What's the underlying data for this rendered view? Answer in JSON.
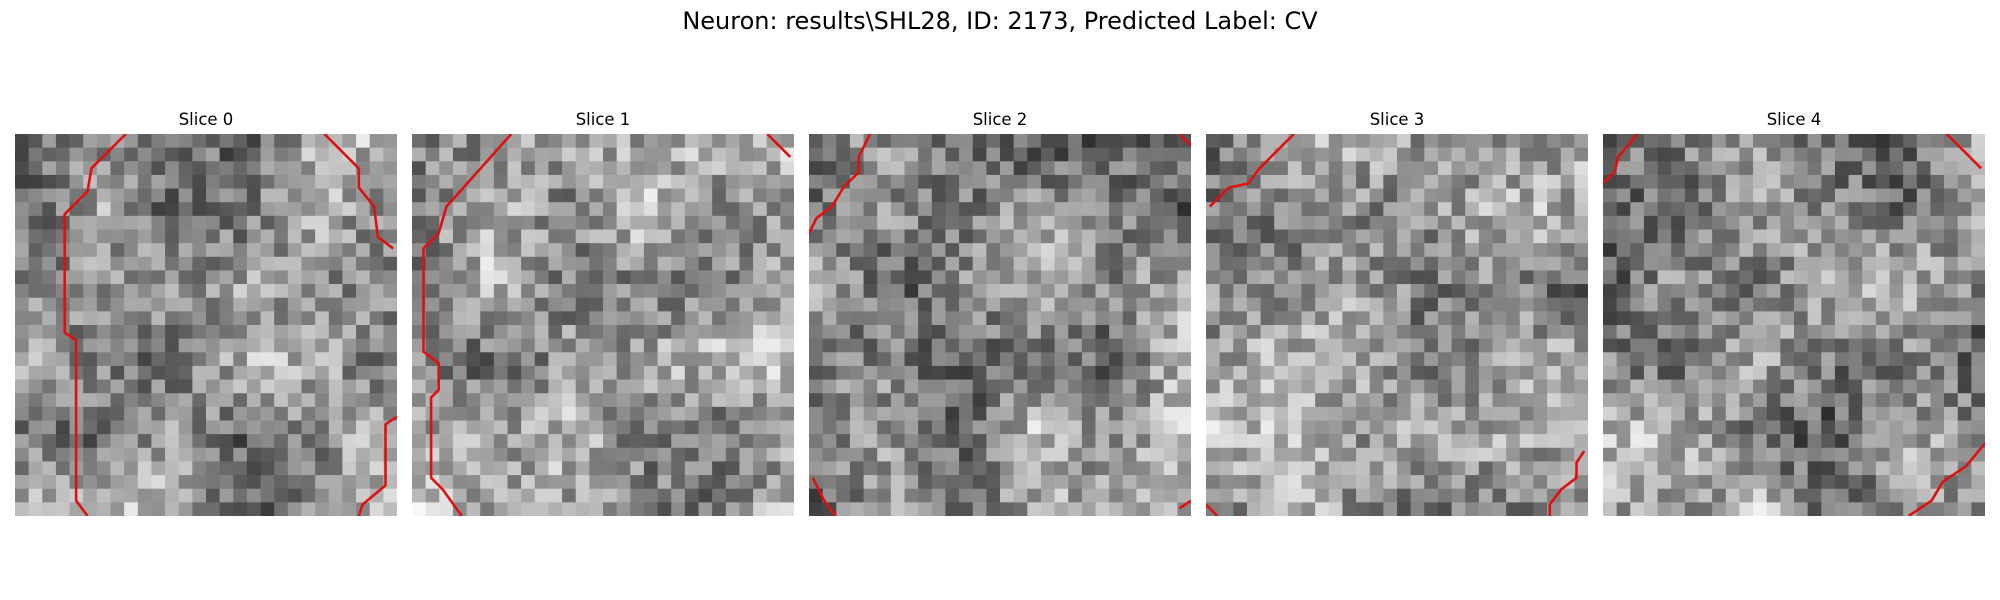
{
  "figure": {
    "title": "Neuron: results\\SHL28, ID: 2173, Predicted Label: CV"
  },
  "colors": {
    "background": "#ffffff",
    "contour": "#e01010",
    "colormap": "grayscale"
  },
  "panels": [
    {
      "title": "Slice 0",
      "seed": 11,
      "brightness": 0.58,
      "contours": [
        [
          [
            0.29,
            0.0
          ],
          [
            0.2,
            0.09
          ],
          [
            0.19,
            0.15
          ],
          [
            0.13,
            0.21
          ],
          [
            0.13,
            0.52
          ],
          [
            0.16,
            0.54
          ],
          [
            0.16,
            0.96
          ],
          [
            0.19,
            1.0
          ]
        ],
        [
          [
            0.81,
            0.0
          ],
          [
            0.9,
            0.09
          ],
          [
            0.9,
            0.14
          ],
          [
            0.94,
            0.19
          ],
          [
            0.95,
            0.27
          ],
          [
            0.99,
            0.3
          ]
        ],
        [
          [
            1.0,
            0.74
          ],
          [
            0.97,
            0.76
          ],
          [
            0.97,
            0.92
          ],
          [
            0.91,
            0.97
          ],
          [
            0.9,
            1.0
          ]
        ]
      ]
    },
    {
      "title": "Slice 1",
      "seed": 23,
      "brightness": 0.62,
      "contours": [
        [
          [
            0.26,
            0.0
          ],
          [
            0.09,
            0.19
          ],
          [
            0.07,
            0.26
          ],
          [
            0.03,
            0.3
          ],
          [
            0.03,
            0.57
          ],
          [
            0.07,
            0.6
          ],
          [
            0.07,
            0.67
          ],
          [
            0.05,
            0.69
          ],
          [
            0.05,
            0.9
          ],
          [
            0.08,
            0.93
          ],
          [
            0.13,
            1.0
          ]
        ],
        [
          [
            0.93,
            0.0
          ],
          [
            0.99,
            0.06
          ]
        ]
      ]
    },
    {
      "title": "Slice 2",
      "seed": 37,
      "brightness": 0.55,
      "contours": [
        [
          [
            0.16,
            0.0
          ],
          [
            0.13,
            0.06
          ],
          [
            0.13,
            0.1
          ],
          [
            0.09,
            0.14
          ],
          [
            0.06,
            0.19
          ],
          [
            0.02,
            0.22
          ],
          [
            0.0,
            0.26
          ]
        ],
        [
          [
            0.97,
            0.0
          ],
          [
            1.0,
            0.03
          ]
        ],
        [
          [
            0.01,
            0.9
          ],
          [
            0.04,
            0.96
          ],
          [
            0.07,
            1.0
          ]
        ],
        [
          [
            0.97,
            0.98
          ],
          [
            1.0,
            0.96
          ]
        ]
      ]
    },
    {
      "title": "Slice 3",
      "seed": 51,
      "brightness": 0.56,
      "contours": [
        [
          [
            0.23,
            0.0
          ],
          [
            0.14,
            0.09
          ],
          [
            0.11,
            0.13
          ],
          [
            0.06,
            0.14
          ],
          [
            0.01,
            0.19
          ]
        ],
        [
          [
            0.99,
            0.83
          ],
          [
            0.97,
            0.86
          ],
          [
            0.97,
            0.9
          ],
          [
            0.93,
            0.93
          ],
          [
            0.9,
            0.97
          ],
          [
            0.9,
            1.0
          ]
        ],
        [
          [
            0.0,
            0.97
          ],
          [
            0.03,
            1.0
          ]
        ]
      ]
    },
    {
      "title": "Slice 4",
      "seed": 67,
      "brightness": 0.57,
      "contours": [
        [
          [
            0.09,
            0.0
          ],
          [
            0.04,
            0.06
          ],
          [
            0.03,
            0.1
          ],
          [
            0.0,
            0.13
          ]
        ],
        [
          [
            0.9,
            0.0
          ],
          [
            0.99,
            0.09
          ]
        ],
        [
          [
            1.0,
            0.81
          ],
          [
            0.95,
            0.87
          ],
          [
            0.89,
            0.91
          ],
          [
            0.86,
            0.96
          ],
          [
            0.8,
            1.0
          ]
        ]
      ]
    }
  ]
}
